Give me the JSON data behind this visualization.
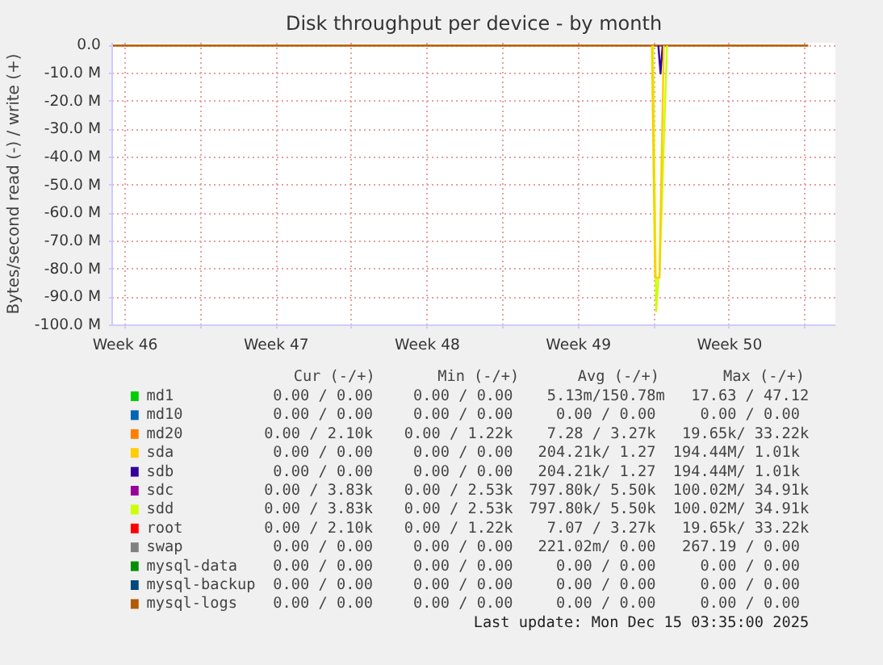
{
  "chart_data": {
    "type": "line",
    "title": "Disk throughput per device - by month",
    "ylabel": "Bytes/second read (-) / write (+)",
    "xlim": [
      "2025-11-12T21:36",
      "2025-12-16T09:36"
    ],
    "ylim": [
      -100000000,
      1000000
    ],
    "xticks": [
      {
        "value": "2025-11-13T12:00",
        "label": "Week 46"
      },
      {
        "value": "2025-11-17",
        "label": null
      },
      {
        "value": "2025-11-20T12:00",
        "label": "Week 47"
      },
      {
        "value": "2025-11-24",
        "label": null
      },
      {
        "value": "2025-11-27T12:00",
        "label": "Week 48"
      },
      {
        "value": "2025-12-01",
        "label": null
      },
      {
        "value": "2025-12-04T12:00",
        "label": "Week 49"
      },
      {
        "value": "2025-12-08",
        "label": null
      },
      {
        "value": "2025-12-11T12:00",
        "label": "Week 50"
      },
      {
        "value": "2025-12-15",
        "label": null
      }
    ],
    "yticks": [
      {
        "value": 0,
        "label": "0.0"
      },
      {
        "value": -10000000,
        "label": "-10.0 M"
      },
      {
        "value": -20000000,
        "label": "-20.0 M"
      },
      {
        "value": -30000000,
        "label": "-30.0 M"
      },
      {
        "value": -40000000,
        "label": "-40.0 M"
      },
      {
        "value": -50000000,
        "label": "-50.0 M"
      },
      {
        "value": -60000000,
        "label": "-60.0 M"
      },
      {
        "value": -70000000,
        "label": "-70.0 M"
      },
      {
        "value": -80000000,
        "label": "-80.0 M"
      },
      {
        "value": -90000000,
        "label": "-90.0 M"
      },
      {
        "value": -100000000,
        "label": "-100.0 M"
      }
    ],
    "grid": true,
    "legend": "bottom",
    "series": [
      {
        "name": "md1",
        "color": "#00cc00"
      },
      {
        "name": "md10",
        "color": "#0066b3"
      },
      {
        "name": "md20",
        "color": "#ff8000"
      },
      {
        "name": "sda",
        "color": "#ffcc00",
        "x": [
          "2025-12-07T21:36",
          "2025-12-08T01:12",
          "2025-12-08T06:00",
          "2025-12-08T10:48"
        ],
        "values": [
          0,
          -83000000,
          -83000000,
          0
        ]
      },
      {
        "name": "sdb",
        "color": "#330099",
        "x": [
          "2025-12-08T04:48",
          "2025-12-08T07:12",
          "2025-12-08T09:36"
        ],
        "values": [
          0,
          -10000000,
          0
        ]
      },
      {
        "name": "sdc",
        "color": "#990099"
      },
      {
        "name": "sdd",
        "color": "#ccff00",
        "x": [
          "2025-12-07T22:48",
          "2025-12-08T02:24",
          "2025-12-08T04:48",
          "2025-12-08T06:00",
          "2025-12-08T14:24"
        ],
        "values": [
          0,
          -95000000,
          -83000000,
          -83000000,
          0
        ]
      },
      {
        "name": "root",
        "color": "#ff0000"
      },
      {
        "name": "swap",
        "color": "#808080"
      },
      {
        "name": "mysql-data",
        "color": "#008f00"
      },
      {
        "name": "mysql-backup",
        "color": "#00487d"
      },
      {
        "name": "mysql-logs",
        "color": "#b35a00",
        "x": [
          "2025-11-12T21:36",
          "2025-12-15T03:30"
        ],
        "values": [
          0,
          0
        ]
      }
    ],
    "annotations": [
      "Cur (-/+)",
      "Min (-/+)",
      "Avg (-/+)",
      "Max (-/+)",
      "0.00 /  0.00",
      "0.00 /  0.00",
      "5.13m/150.78m",
      "17.63 / 47.12",
      "0.00 /  0.00",
      "0.00 /  0.00",
      "0.00 /  0.00",
      "0.00 /  0.00",
      "0.00 /  2.10k",
      "0.00 /  1.22k",
      "7.28 /  3.27k",
      "19.65k/ 33.22k",
      "0.00 /  0.00",
      "0.00 /  0.00",
      "204.21k/  1.27",
      "194.44M/  1.01k",
      "0.00 /  0.00",
      "0.00 /  0.00",
      "204.21k/  1.27",
      "194.44M/  1.01k",
      "0.00 /  3.83k",
      "0.00 /  2.53k",
      "797.80k/  5.50k",
      "100.02M/ 34.91k",
      "0.00 /  3.83k",
      "0.00 /  2.53k",
      "797.80k/  5.50k",
      "100.02M/ 34.91k",
      "0.00 /  2.10k",
      "0.00 /  1.22k",
      "7.07 /  3.27k",
      "19.65k/ 33.22k",
      "0.00 /  0.00",
      "0.00 /  0.00",
      "221.02m/  0.00",
      "267.19 /  0.00",
      "0.00 /  0.00",
      "0.00 /  0.00",
      "0.00 /  0.00",
      "0.00 /  0.00",
      "0.00 /  0.00",
      "0.00 /  0.00",
      "0.00 /  0.00",
      "0.00 /  0.00",
      "0.00 /  0.00",
      "0.00 /  0.00",
      "0.00 /  0.00",
      "0.00 /  0.00",
      "Last update: Mon Dec 15 03:35:00 2025"
    ]
  }
}
